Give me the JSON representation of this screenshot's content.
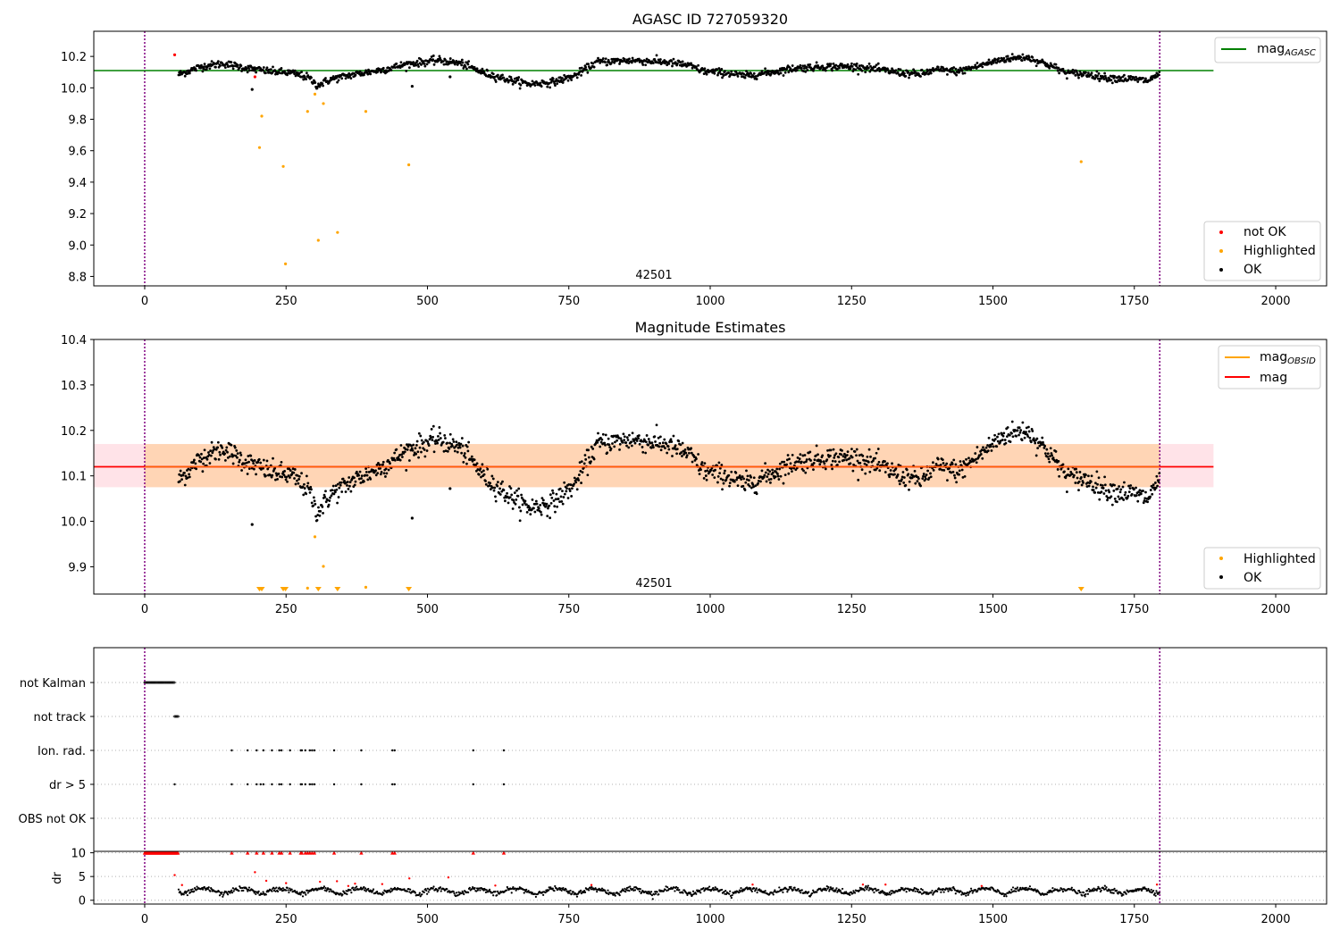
{
  "chart_data": [
    {
      "type": "scatter",
      "title": "AGASC ID 727059320",
      "obsid_label": "42501",
      "xlim": [
        -90,
        2090
      ],
      "ylim": [
        8.74,
        10.36
      ],
      "xticks": [
        0,
        250,
        500,
        750,
        1000,
        1250,
        1500,
        1750,
        2000
      ],
      "yticks": [
        8.8,
        9.0,
        9.2,
        9.4,
        9.6,
        9.8,
        10.0,
        10.2
      ],
      "ytick_labels": [
        "8.8",
        "9.0",
        "9.2",
        "9.4",
        "9.6",
        "9.8",
        "10.0",
        "10.2"
      ],
      "vlines": [
        0,
        1795
      ],
      "hline": {
        "name": "mag_AGASC",
        "label_main": "mag",
        "label_sub": "AGASC",
        "y": 10.11,
        "x": [
          -90,
          1890
        ]
      },
      "legend_lines": [
        {
          "label": "mag",
          "sub": "AGASC",
          "color": "#008000"
        }
      ],
      "legend_markers": [
        {
          "label": "not OK",
          "color": "#ff0000"
        },
        {
          "label": "Highlighted",
          "color": "#ffa500"
        },
        {
          "label": "OK",
          "color": "#000000"
        }
      ],
      "series": [
        {
          "name": "OK",
          "color": "#000000",
          "generator": "magnitude_curve",
          "x_range": [
            60,
            1795
          ],
          "noise": 0.012
        },
        {
          "name": "not OK",
          "color": "#ff0000",
          "points": [
            [
              53,
              10.21
            ],
            [
              195,
              10.07
            ]
          ]
        },
        {
          "name": "Highlighted",
          "color": "#ffa500",
          "points": [
            [
              203,
              9.62
            ],
            [
              207,
              9.82
            ],
            [
              245,
              9.5
            ],
            [
              249,
              8.88
            ],
            [
              288,
              9.85
            ],
            [
              301,
              9.96
            ],
            [
              307,
              9.03
            ],
            [
              316,
              9.9
            ],
            [
              341,
              9.08
            ],
            [
              391,
              9.85
            ],
            [
              467,
              9.51
            ],
            [
              1656,
              9.53
            ]
          ]
        },
        {
          "name": "OK outliers",
          "color": "#000000",
          "points": [
            [
              190,
              9.99
            ],
            [
              473,
              10.01
            ],
            [
              540,
              10.07
            ]
          ]
        }
      ]
    },
    {
      "type": "scatter",
      "title": "Magnitude Estimates",
      "obsid_label": "42501",
      "xlim": [
        -90,
        2090
      ],
      "ylim": [
        9.84,
        10.4
      ],
      "xticks": [
        0,
        250,
        500,
        750,
        1000,
        1250,
        1500,
        1750,
        2000
      ],
      "yticks": [
        9.9,
        10.0,
        10.1,
        10.2,
        10.3,
        10.4
      ],
      "ytick_labels": [
        "9.9",
        "10.0",
        "10.1",
        "10.2",
        "10.3",
        "10.4"
      ],
      "vlines": [
        0,
        1795
      ],
      "mag_line": {
        "y": 10.12,
        "x": [
          -90,
          1890
        ],
        "color": "#ff0000"
      },
      "mag_band": {
        "y0": 10.075,
        "y1": 10.17,
        "x": [
          -90,
          1890
        ],
        "color": "#ffc0cb"
      },
      "obsid_band": {
        "y0": 10.075,
        "y1": 10.17,
        "x": [
          0,
          1795
        ],
        "color": "#ffa500"
      },
      "obsid_line": {
        "y": 10.12,
        "x": [
          0,
          1795
        ],
        "color": "#ffa500"
      },
      "legend_lines": [
        {
          "label": "mag",
          "sub": "OBSID",
          "color": "#ffa500"
        },
        {
          "label": "mag",
          "sub": "",
          "color": "#ff0000"
        }
      ],
      "legend_markers": [
        {
          "label": "Highlighted",
          "color": "#ffa500"
        },
        {
          "label": "OK",
          "color": "#000000"
        }
      ],
      "series": [
        {
          "name": "OK",
          "color": "#000000",
          "generator": "magnitude_curve",
          "x_range": [
            60,
            1795
          ],
          "noise": 0.012
        },
        {
          "name": "Highlighted",
          "color": "#ffa500",
          "points": [
            [
              301,
              9.966
            ],
            [
              316,
              9.901
            ],
            [
              391,
              9.855
            ],
            [
              288,
              9.853
            ]
          ]
        },
        {
          "name": "OK outliers",
          "color": "#000000",
          "points": [
            [
              190,
              9.993
            ],
            [
              473,
              10.007
            ],
            [
              540,
              10.072
            ]
          ]
        },
        {
          "name": "Highlighted (below range)",
          "color": "#ffa500",
          "marker": "triangle-down",
          "x": [
            203,
            207,
            245,
            249,
            307,
            341,
            467,
            1656
          ]
        }
      ]
    },
    {
      "type": "scatter",
      "title": "",
      "xlim": [
        -90,
        2090
      ],
      "xticks": [
        0,
        250,
        500,
        750,
        1000,
        1250,
        1500,
        1750,
        2000
      ],
      "vlines": [
        0,
        1795
      ],
      "flag_rows": [
        {
          "label": "not Kalman",
          "ranges": [
            [
              0,
              53
            ]
          ]
        },
        {
          "label": "not track",
          "ranges": [
            [
              53,
              60
            ]
          ]
        },
        {
          "label": "Ion. rad.",
          "x": [
            154,
            182,
            198,
            210,
            225,
            238,
            242,
            257,
            276,
            278,
            284,
            292,
            296,
            300,
            335,
            383,
            438,
            442,
            581,
            635
          ]
        },
        {
          "label": "dr > 5",
          "x": [
            53,
            154,
            182,
            198,
            205,
            210,
            225,
            238,
            242,
            257,
            276,
            278,
            284,
            292,
            296,
            300,
            335,
            383,
            438,
            442,
            581,
            635
          ]
        },
        {
          "label": "OBS not OK",
          "x": []
        }
      ],
      "dr_panel": {
        "ylabel": "dr",
        "yticks": [
          0,
          5,
          10
        ],
        "ylim": [
          -0.8,
          10.3
        ],
        "clip_at": 10,
        "clipped_ranges": [
          [
            0,
            60
          ]
        ],
        "clipped_x": [
          154,
          182,
          198,
          210,
          225,
          238,
          242,
          257,
          276,
          278,
          284,
          288,
          292,
          296,
          300,
          335,
          383,
          438,
          442,
          581,
          635
        ],
        "high_points": [
          [
            53,
            5.3
          ],
          [
            195,
            5.9
          ],
          [
            66,
            3.2
          ],
          [
            215,
            4.1
          ],
          [
            250,
            3.6
          ],
          [
            310,
            3.9
          ],
          [
            340,
            4.0
          ],
          [
            360,
            3.0
          ],
          [
            372,
            3.5
          ],
          [
            420,
            3.4
          ],
          [
            468,
            4.6
          ],
          [
            537,
            4.8
          ],
          [
            620,
            3.1
          ],
          [
            790,
            3.2
          ],
          [
            1075,
            3.3
          ],
          [
            1270,
            3.3
          ],
          [
            1310,
            3.3
          ],
          [
            1480,
            3.0
          ],
          [
            1790,
            3.3
          ]
        ],
        "red_color": "#ff0000",
        "black_color": "#000000"
      }
    }
  ]
}
